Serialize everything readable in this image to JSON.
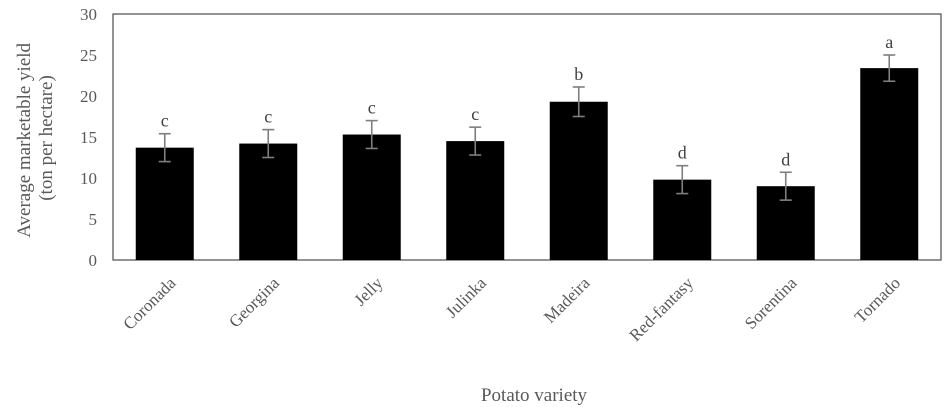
{
  "chart_data": {
    "type": "bar",
    "title": "",
    "xlabel": "Potato variety",
    "ylabel_line1": "Average marketable yield",
    "ylabel_line2": "(ton per hectare)",
    "ylim": [
      0,
      30
    ],
    "yticks": [
      0,
      5,
      10,
      15,
      20,
      25,
      30
    ],
    "categories": [
      "Coronada",
      "Georgina",
      "Jelly",
      "Julinka",
      "Madeira",
      "Red-fantasy",
      "Sorentina",
      "Tornado"
    ],
    "values": [
      13.7,
      14.2,
      15.3,
      14.5,
      19.3,
      9.8,
      9.0,
      23.4
    ],
    "errors": [
      1.7,
      1.7,
      1.7,
      1.7,
      1.8,
      1.7,
      1.7,
      1.6
    ],
    "significance": [
      "c",
      "c",
      "c",
      "c",
      "b",
      "d",
      "d",
      "a"
    ],
    "bar_color": "#000000",
    "error_bar_color": "#7f7f7f",
    "axis_color": "#595959",
    "grid": false,
    "legend": "none"
  }
}
